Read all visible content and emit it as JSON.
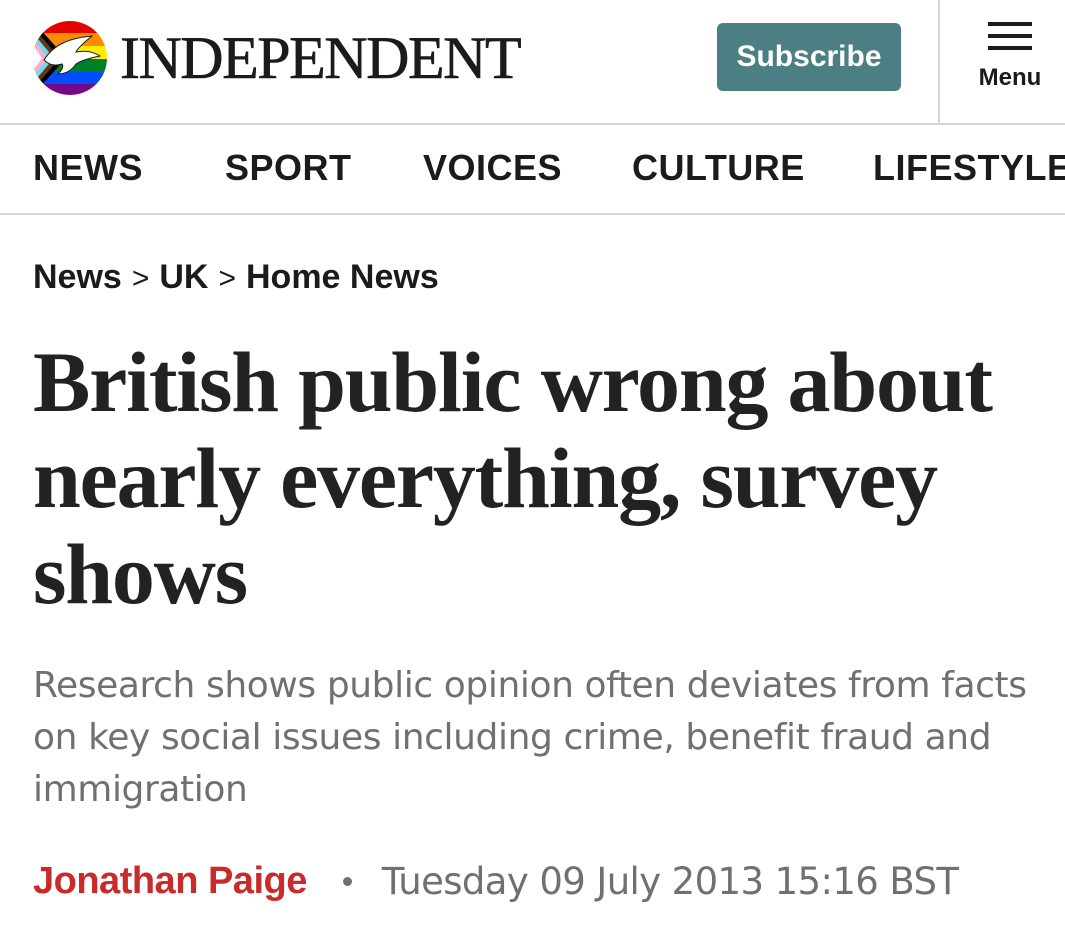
{
  "header": {
    "wordmark": "INDEPENDENT",
    "subscribe_label": "Subscribe",
    "menu_label": "Menu",
    "logo_icon": "eagle-pride-logo-icon",
    "menu_icon": "hamburger-menu-icon"
  },
  "nav": {
    "items": [
      "NEWS",
      "SPORT",
      "VOICES",
      "CULTURE",
      "LIFESTYLE"
    ]
  },
  "breadcrumb": {
    "items": [
      "News",
      "UK",
      "Home News"
    ],
    "separator": ">"
  },
  "article": {
    "headline": "British public wrong about nearly everything, survey shows",
    "standfirst": "Research shows public opinion often deviates from facts on key social issues including crime, benefit fraud and immigration",
    "author": "Jonathan Paige",
    "date": "Tuesday 09 July 2013 15:16 BST"
  },
  "colors": {
    "subscribe_bg": "#4b7f84",
    "author": "#c92a2a",
    "muted_text": "#707070",
    "divider": "#d6d6d6"
  }
}
